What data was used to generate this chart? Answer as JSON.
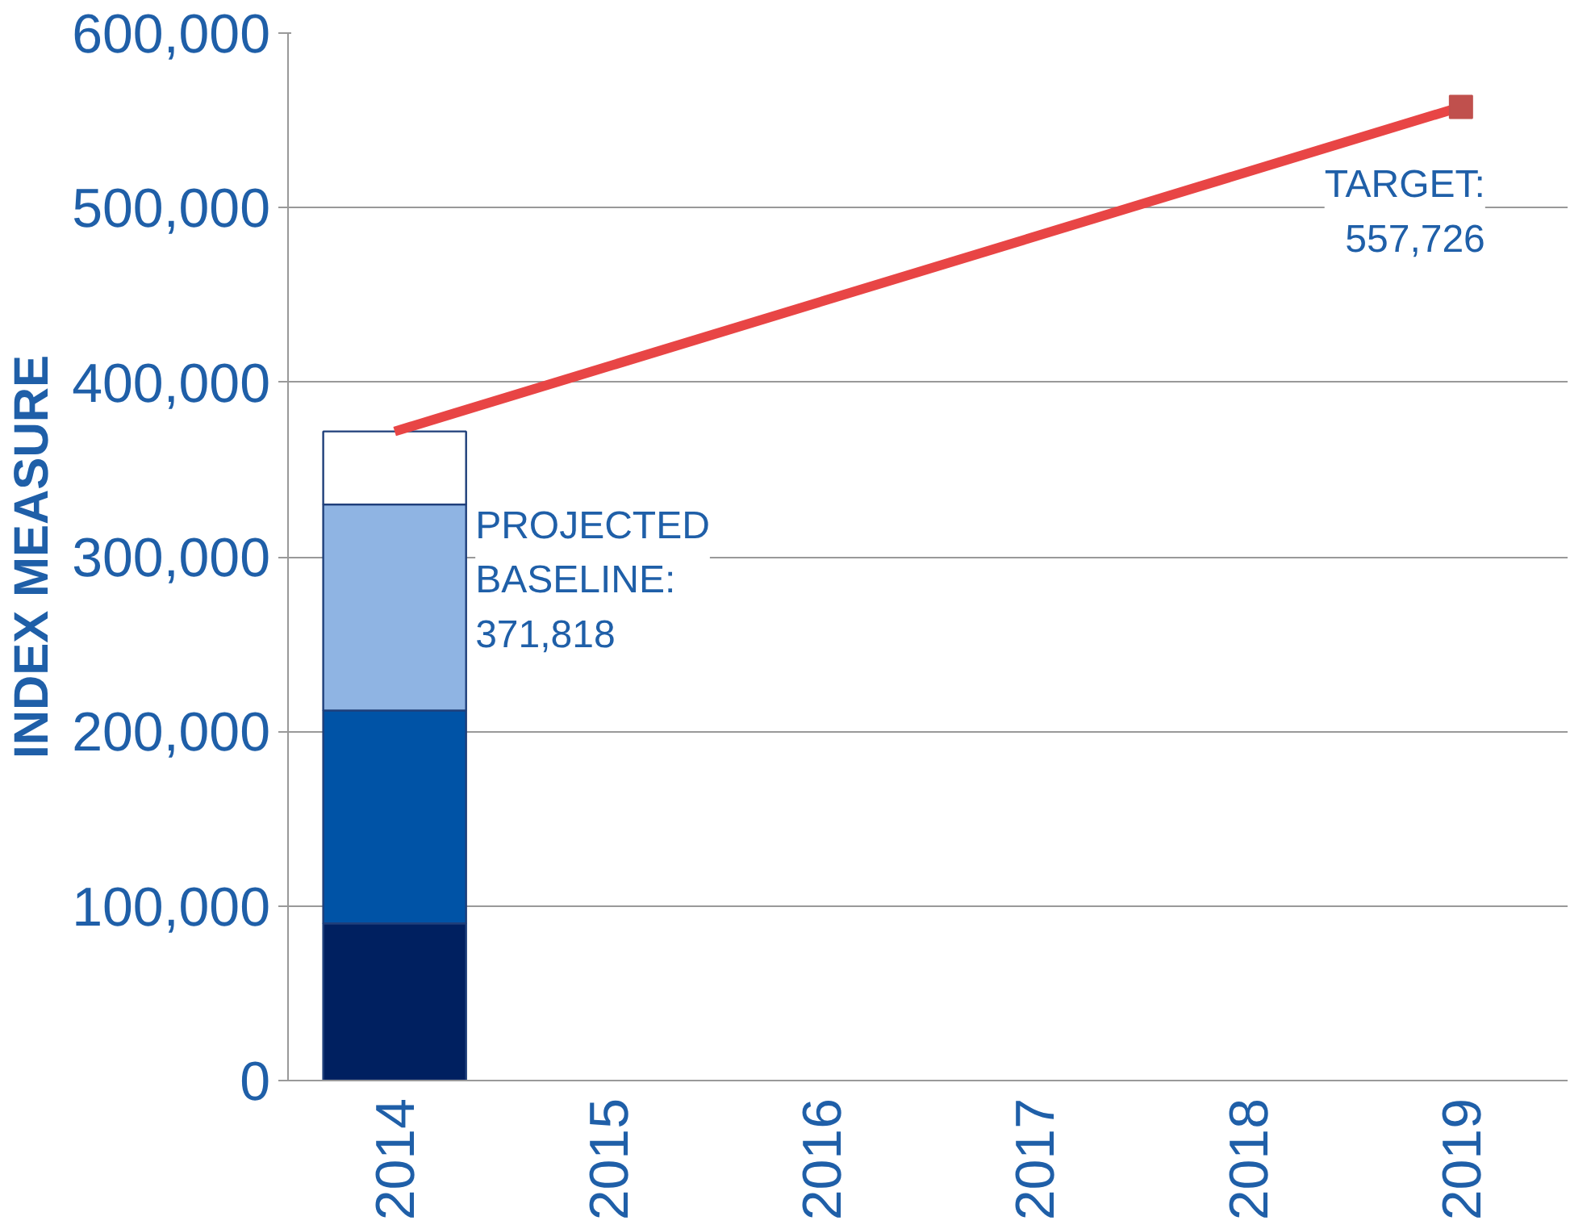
{
  "chart_data": {
    "type": "bar",
    "ylabel": "INDEX MEASURE",
    "stacked": true,
    "categories": [
      "2014",
      "2015",
      "2016",
      "2017",
      "2018",
      "2019"
    ],
    "series": [
      {
        "color": "#002060",
        "values": [
          90000,
          null,
          null,
          null,
          null,
          null
        ]
      },
      {
        "color": "#0053a6",
        "values": [
          122000,
          null,
          null,
          null,
          null,
          null
        ]
      },
      {
        "color": "#8fb4e3",
        "values": [
          118000,
          null,
          null,
          null,
          null,
          null
        ]
      },
      {
        "color": "#ffffff",
        "values": [
          41818,
          null,
          null,
          null,
          null,
          null
        ]
      },
      {
        "type": "line",
        "color": "#e84545",
        "values": [
          371818,
          null,
          null,
          null,
          null,
          557726
        ],
        "marker": "square"
      }
    ],
    "ylim": [
      0,
      600000
    ],
    "yticks": [
      {
        "value": 0,
        "label": "0"
      },
      {
        "value": 100000,
        "label": "100,000"
      },
      {
        "value": 200000,
        "label": "200,000"
      },
      {
        "value": 300000,
        "label": "300,000"
      },
      {
        "value": 400000,
        "label": "400,000"
      },
      {
        "value": 500000,
        "label": "500,000"
      },
      {
        "value": 600000,
        "label": "600,000"
      }
    ],
    "grid": "y",
    "annotations": [
      {
        "text": "PROJECTED\nBASELINE:\n371,818",
        "x": "2014",
        "y": 371818
      },
      {
        "text": "TARGET:\n557,726",
        "x": "2019",
        "y": 557726
      }
    ]
  }
}
